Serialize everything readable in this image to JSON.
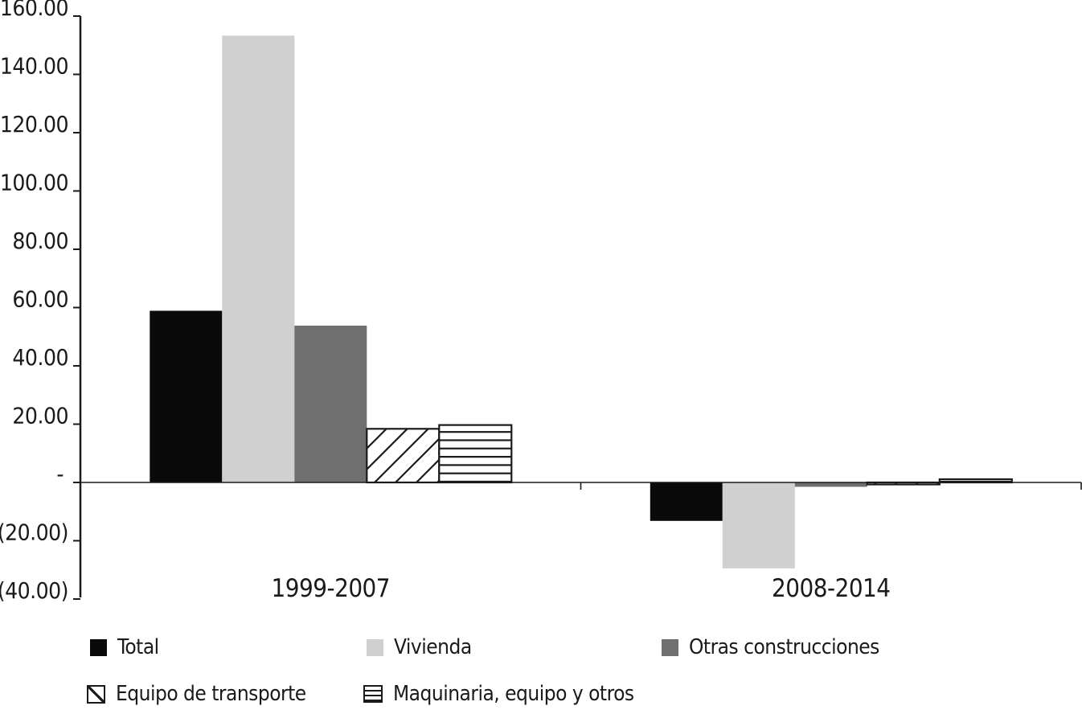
{
  "chart_data": {
    "type": "bar",
    "title": "",
    "categories": [
      "1999-2007",
      "2008-2014"
    ],
    "series": [
      {
        "name": "Total",
        "style": "solid-black",
        "values": [
          58.9,
          -13.2
        ]
      },
      {
        "name": "Vivienda",
        "style": "solid-lightgray",
        "values": [
          153.3,
          -29.5
        ]
      },
      {
        "name": "Otras construcciones",
        "style": "solid-darkgray",
        "values": [
          53.8,
          -1.5
        ]
      },
      {
        "name": "Equipo de transporte",
        "style": "hatch-diagonal",
        "values": [
          18.4,
          -0.7
        ]
      },
      {
        "name": "Maquinaria, equipo y otros",
        "style": "hatch-horizontal",
        "values": [
          19.7,
          1.1
        ]
      }
    ],
    "ylim": [
      -40,
      160
    ],
    "ytick_step": 20,
    "ytick_labels": [
      "(40.00)",
      "(20.00)",
      "-",
      "20.00",
      "40.00",
      "60.00",
      "80.00",
      "100.00",
      "120.00",
      "140.00",
      "160.00"
    ],
    "number_format": "accounting",
    "grid": false,
    "legend_position": "bottom",
    "xlabel": "",
    "ylabel": ""
  },
  "colors": {
    "black": "#0a0a0a",
    "light_gray": "#d0d0d0",
    "dark_gray": "#6f6f6f",
    "ink": "#1a1a1a",
    "background": "#ffffff"
  }
}
